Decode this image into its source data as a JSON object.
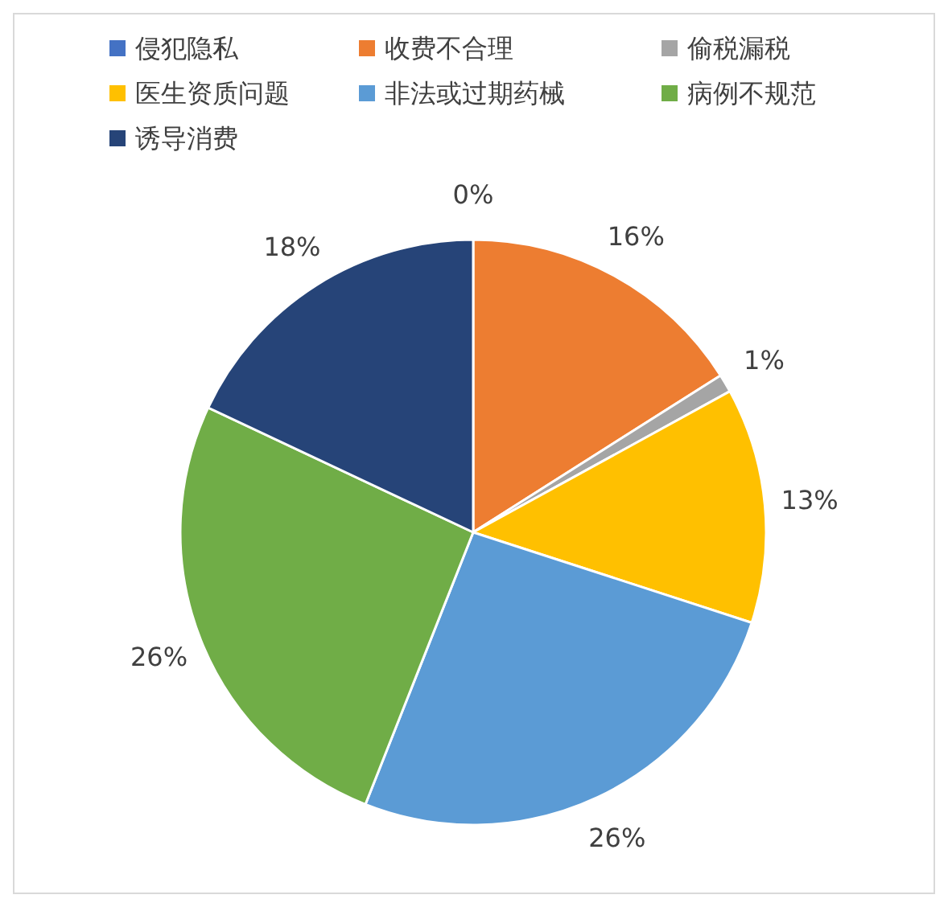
{
  "chart_data": {
    "type": "pie",
    "categories": [
      "侵犯隐私",
      "收费不合理",
      "偷税漏税",
      "医生资质问题",
      "非法或过期药械",
      "病例不规范",
      "诱导消费"
    ],
    "values": [
      0,
      16,
      1,
      13,
      26,
      26,
      18
    ],
    "colors": [
      "#4472c4",
      "#ed7d31",
      "#a5a5a5",
      "#ffc000",
      "#5b9bd5",
      "#70ad47",
      "#264478"
    ],
    "value_labels": [
      "0%",
      "16%",
      "1%",
      "13%",
      "26%",
      "26%",
      "18%"
    ],
    "legend": "top"
  }
}
